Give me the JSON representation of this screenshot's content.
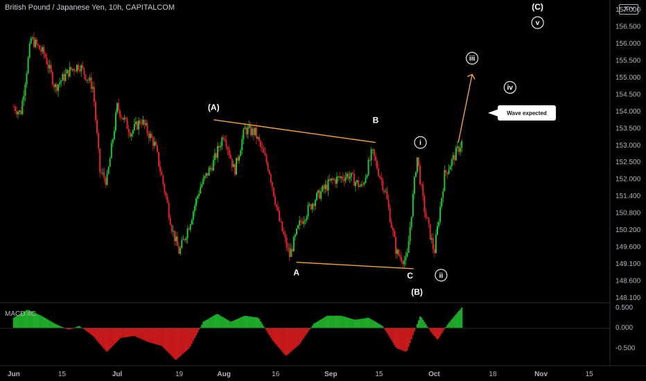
{
  "header": {
    "title": "British Pound / Japanese Yen, 10h, CAPITALCOM"
  },
  "currency_badge": "JPY",
  "callout": "Wave expected",
  "macd_label": "MACD 4C",
  "colors": {
    "bull": "#26c431",
    "bear": "#e0262b",
    "wave_line": "#f4a53c",
    "macd_pos": "#1faa2a",
    "macd_neg": "#c81a1a"
  },
  "chart_data": [
    {
      "type": "candlestick",
      "title": "British Pound / Japanese Yen, 10h, CAPITALCOM",
      "y_axis_ticks": [
        "157.000",
        "156.500",
        "156.000",
        "155.500",
        "155.000",
        "154.500",
        "154.000",
        "153.500",
        "153.000",
        "152.500",
        "152.000",
        "151.400",
        "150.800",
        "150.200",
        "149.600",
        "149.100",
        "148.600",
        "148.100"
      ],
      "ylim": [
        148.1,
        157.0
      ],
      "x_axis_ticks": [
        "Jun",
        "15",
        "Jul",
        "19",
        "Aug",
        "16",
        "Sep",
        "15",
        "Oct",
        "18",
        "Nov",
        "15"
      ],
      "price_path": [
        [
          "2024-06-01",
          154.0
        ],
        [
          "2024-06-03",
          153.8
        ],
        [
          "2024-06-06",
          156.1
        ],
        [
          "2024-06-10",
          155.6
        ],
        [
          "2024-06-13",
          154.6
        ],
        [
          "2024-06-17",
          155.1
        ],
        [
          "2024-06-20",
          155.3
        ],
        [
          "2024-06-24",
          154.6
        ],
        [
          "2024-06-26",
          152.0
        ],
        [
          "2024-06-28",
          151.7
        ],
        [
          "2024-07-01",
          154.0
        ],
        [
          "2024-07-05",
          153.2
        ],
        [
          "2024-07-08",
          153.6
        ],
        [
          "2024-07-12",
          152.8
        ],
        [
          "2024-07-15",
          151.3
        ],
        [
          "2024-07-17",
          150.2
        ],
        [
          "2024-07-19",
          149.5
        ],
        [
          "2024-07-22",
          150.4
        ],
        [
          "2024-07-25",
          151.5
        ],
        [
          "2024-07-29",
          152.3
        ],
        [
          "2024-08-01",
          153.2
        ],
        [
          "2024-08-04",
          152.0
        ],
        [
          "2024-08-07",
          153.3
        ],
        [
          "2024-08-10",
          153.2
        ],
        [
          "2024-08-14",
          152.1
        ],
        [
          "2024-08-17",
          150.5
        ],
        [
          "2024-08-20",
          149.4
        ],
        [
          "2024-08-23",
          150.4
        ],
        [
          "2024-08-27",
          151.1
        ],
        [
          "2024-09-01",
          151.7
        ],
        [
          "2024-09-06",
          151.9
        ],
        [
          "2024-09-10",
          151.5
        ],
        [
          "2024-09-13",
          152.6
        ],
        [
          "2024-09-17",
          151.3
        ],
        [
          "2024-09-20",
          149.5
        ],
        [
          "2024-09-23",
          149.2
        ],
        [
          "2024-09-26",
          152.5
        ],
        [
          "2024-09-28",
          150.9
        ],
        [
          "2024-10-01",
          149.5
        ],
        [
          "2024-10-04",
          151.9
        ],
        [
          "2024-10-07",
          152.5
        ],
        [
          "2024-10-09",
          152.9
        ]
      ],
      "annotations": {
        "wave_labels": [
          {
            "text": "(A)",
            "date": "2024-07-29",
            "price": 153.9
          },
          {
            "text": "B",
            "date": "2024-09-14",
            "price": 153.5
          },
          {
            "text": "A",
            "date": "2024-08-22",
            "price": 148.8
          },
          {
            "text": "C",
            "date": "2024-09-24",
            "price": 148.7
          },
          {
            "text": "(B)",
            "date": "2024-09-26",
            "price": 148.2
          },
          {
            "text": "(C)",
            "date": "2024-10-31",
            "price": 157.0
          }
        ],
        "circled_labels": [
          {
            "text": "i",
            "date": "2024-09-27",
            "price": 152.9
          },
          {
            "text": "ii",
            "date": "2024-10-03",
            "price": 148.8
          },
          {
            "text": "iii",
            "date": "2024-10-12",
            "price": 155.5
          },
          {
            "text": "iv",
            "date": "2024-10-23",
            "price": 154.6
          },
          {
            "text": "v",
            "date": "2024-10-31",
            "price": 156.6
          }
        ],
        "trendlines": [
          {
            "from": [
              "2024-07-29",
              153.6
            ],
            "to": [
              "2024-09-14",
              152.9
            ]
          },
          {
            "from": [
              "2024-08-22",
              149.2
            ],
            "to": [
              "2024-09-25",
              149.0
            ]
          }
        ],
        "arrow": {
          "from": [
            "2024-10-08",
            152.9
          ],
          "to": [
            "2024-10-12",
            155.0
          ]
        }
      }
    },
    {
      "type": "histogram",
      "name": "MACD 4C",
      "y_axis_ticks": [
        "0.500",
        "0.000",
        "-0.500"
      ],
      "ylim": [
        -0.8,
        0.5
      ],
      "points": [
        [
          "2024-06-01",
          0.25
        ],
        [
          "2024-06-05",
          0.45
        ],
        [
          "2024-06-09",
          0.3
        ],
        [
          "2024-06-13",
          0.1
        ],
        [
          "2024-06-17",
          -0.05
        ],
        [
          "2024-06-20",
          0.05
        ],
        [
          "2024-06-24",
          -0.2
        ],
        [
          "2024-06-28",
          -0.6
        ],
        [
          "2024-07-02",
          -0.25
        ],
        [
          "2024-07-06",
          -0.2
        ],
        [
          "2024-07-10",
          -0.35
        ],
        [
          "2024-07-14",
          -0.45
        ],
        [
          "2024-07-18",
          -0.8
        ],
        [
          "2024-07-22",
          -0.5
        ],
        [
          "2024-07-26",
          0.15
        ],
        [
          "2024-07-30",
          0.35
        ],
        [
          "2024-08-03",
          0.15
        ],
        [
          "2024-08-07",
          0.3
        ],
        [
          "2024-08-11",
          0.25
        ],
        [
          "2024-08-15",
          -0.3
        ],
        [
          "2024-08-19",
          -0.7
        ],
        [
          "2024-08-23",
          -0.4
        ],
        [
          "2024-08-27",
          0.1
        ],
        [
          "2024-08-31",
          0.3
        ],
        [
          "2024-09-04",
          0.3
        ],
        [
          "2024-09-08",
          0.2
        ],
        [
          "2024-09-12",
          0.25
        ],
        [
          "2024-09-16",
          0.05
        ],
        [
          "2024-09-20",
          -0.5
        ],
        [
          "2024-09-23",
          -0.6
        ],
        [
          "2024-09-27",
          0.3
        ],
        [
          "2024-09-30",
          -0.1
        ],
        [
          "2024-10-02",
          -0.3
        ],
        [
          "2024-10-05",
          0.1
        ],
        [
          "2024-10-09",
          0.5
        ]
      ]
    }
  ]
}
